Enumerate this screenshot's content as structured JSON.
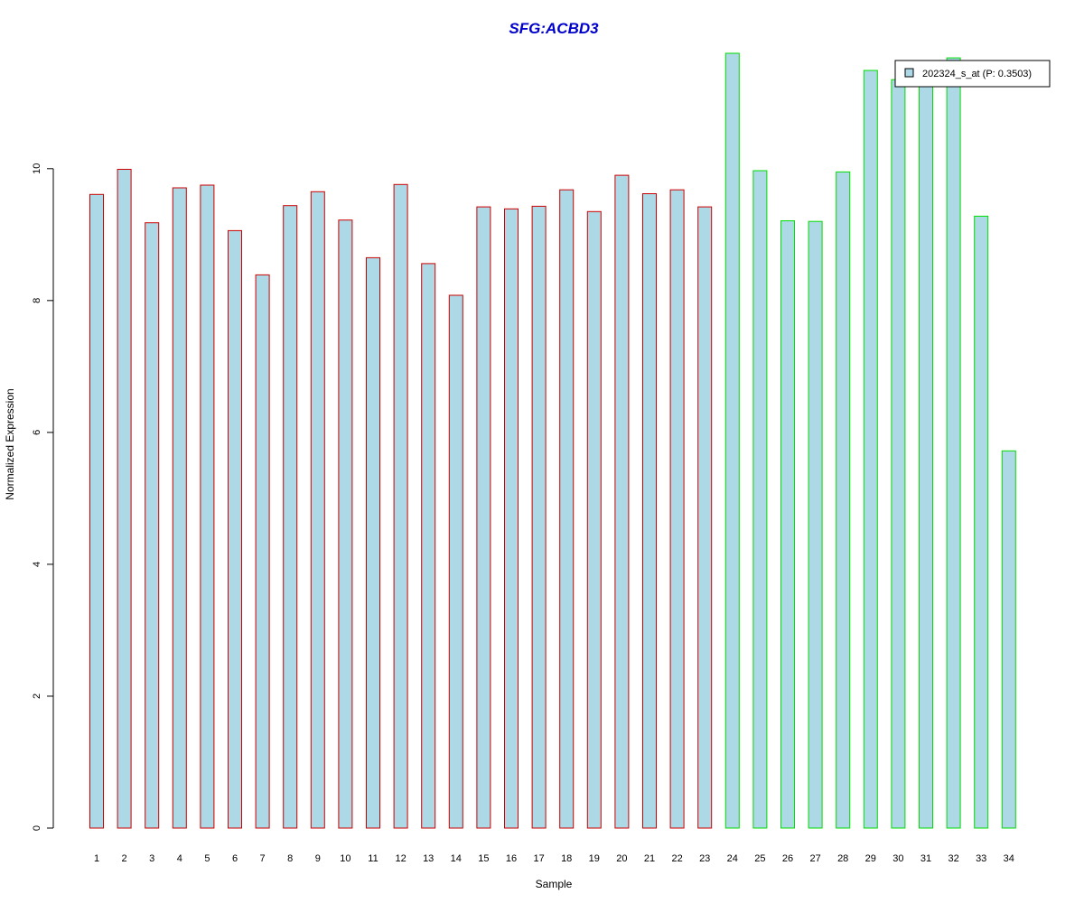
{
  "chart_data": {
    "type": "bar",
    "title": "SFG:ACBD3",
    "xlabel": "Sample",
    "ylabel": "Normalized Expression",
    "categories": [
      "1",
      "2",
      "3",
      "4",
      "5",
      "6",
      "7",
      "8",
      "9",
      "10",
      "11",
      "12",
      "13",
      "14",
      "15",
      "16",
      "17",
      "18",
      "19",
      "20",
      "21",
      "22",
      "23",
      "24",
      "25",
      "26",
      "27",
      "28",
      "29",
      "30",
      "31",
      "32",
      "33",
      "34"
    ],
    "series": [
      {
        "name": "202324_s_at (P: 0.3503)",
        "values": [
          9.61,
          9.99,
          9.18,
          9.71,
          9.75,
          9.06,
          8.39,
          9.44,
          9.65,
          9.22,
          8.65,
          9.76,
          8.56,
          8.08,
          9.42,
          9.39,
          9.43,
          9.68,
          9.35,
          9.9,
          9.62,
          9.68,
          9.42,
          11.75,
          9.97,
          9.21,
          9.2,
          9.95,
          11.49,
          11.35,
          11.35,
          11.68,
          9.28,
          5.72
        ]
      }
    ],
    "groups": [
      1,
      1,
      1,
      1,
      1,
      1,
      1,
      1,
      1,
      1,
      1,
      1,
      1,
      1,
      1,
      1,
      1,
      1,
      1,
      1,
      1,
      1,
      1,
      2,
      2,
      2,
      2,
      2,
      2,
      2,
      2,
      2,
      2,
      2
    ],
    "ylim": [
      0,
      11.75
    ],
    "yticks": [
      0,
      2,
      4,
      6,
      8,
      10
    ],
    "grid": false,
    "legend_position": "top-right",
    "colors": {
      "bar_fill": "#add8e6",
      "group1_border": "#cc0000",
      "group2_border": "#00dd00",
      "title": "#0000cc"
    }
  }
}
